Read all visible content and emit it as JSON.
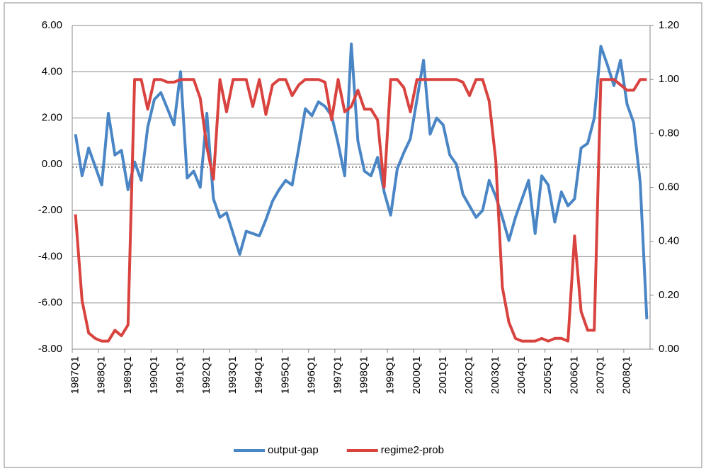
{
  "chart_data": {
    "type": "line",
    "categories": [
      "1987Q1",
      null,
      null,
      null,
      "1988Q1",
      null,
      null,
      null,
      "1989Q1",
      null,
      null,
      null,
      "1990Q1",
      null,
      null,
      null,
      "1991Q1",
      null,
      null,
      null,
      "1992Q1",
      null,
      null,
      null,
      "1993Q1",
      null,
      null,
      null,
      "1994Q1",
      null,
      null,
      null,
      "1995Q1",
      null,
      null,
      null,
      "1996Q1",
      null,
      null,
      null,
      "1997Q1",
      null,
      null,
      null,
      "1998Q1",
      null,
      null,
      null,
      "1999Q1",
      null,
      null,
      null,
      "2000Q1",
      null,
      null,
      null,
      "2001Q1",
      null,
      null,
      null,
      "2002Q1",
      null,
      null,
      null,
      "2003Q1",
      null,
      null,
      null,
      "2004Q1",
      null,
      null,
      null,
      "2005Q1",
      null,
      null,
      null,
      "2006Q1",
      null,
      null,
      null,
      "2007Q1",
      null,
      null,
      null,
      "2008Q1",
      null,
      null,
      null
    ],
    "series": [
      {
        "name": "output-gap",
        "color": "#4a86c5",
        "values": [
          1.3,
          -0.5,
          0.7,
          -0.1,
          -0.9,
          2.2,
          0.4,
          0.6,
          -1.1,
          0.1,
          -0.7,
          1.6,
          2.8,
          3.1,
          2.4,
          1.7,
          4.0,
          -0.6,
          -0.3,
          -1.0,
          2.2,
          -1.5,
          -2.3,
          -2.1,
          -3.0,
          -3.9,
          -2.9,
          -3.0,
          -3.1,
          -2.4,
          -1.6,
          -1.1,
          -0.7,
          -0.9,
          0.7,
          2.4,
          2.1,
          2.7,
          2.5,
          2.1,
          0.9,
          -0.5,
          5.2,
          1.0,
          -0.3,
          -0.5,
          0.3,
          -1.2,
          -2.2,
          -0.2,
          0.5,
          1.1,
          2.8,
          4.5,
          1.3,
          2.0,
          1.7,
          0.4,
          0.0,
          -1.3,
          -1.8,
          -2.3,
          -2.0,
          -0.7,
          -1.4,
          -2.3,
          -3.3,
          -2.3,
          -1.5,
          -0.7,
          -3.0,
          -0.5,
          -0.9,
          -2.5,
          -1.2,
          -1.8,
          -1.5,
          0.7,
          0.9,
          2.0,
          5.1,
          4.3,
          3.4,
          4.5,
          2.6,
          1.8,
          -0.8,
          -6.7
        ]
      },
      {
        "name": "regime2-prob",
        "color": "#d9433f",
        "axis": "y2",
        "values": [
          0.5,
          0.18,
          0.06,
          0.04,
          0.03,
          0.03,
          0.07,
          0.05,
          0.09,
          1.0,
          1.0,
          0.89,
          1.0,
          1.0,
          0.99,
          0.99,
          1.0,
          1.0,
          1.0,
          0.93,
          0.75,
          0.63,
          1.0,
          0.88,
          1.0,
          1.0,
          1.0,
          0.9,
          1.0,
          0.87,
          0.98,
          1.0,
          1.0,
          0.94,
          0.98,
          1.0,
          1.0,
          1.0,
          0.99,
          0.85,
          1.0,
          0.88,
          0.9,
          0.96,
          0.89,
          0.89,
          0.85,
          0.6,
          1.0,
          1.0,
          0.97,
          0.88,
          1.0,
          1.0,
          1.0,
          1.0,
          1.0,
          1.0,
          1.0,
          0.99,
          0.94,
          1.0,
          1.0,
          0.92,
          0.7,
          0.23,
          0.1,
          0.04,
          0.03,
          0.03,
          0.03,
          0.04,
          0.03,
          0.04,
          0.04,
          0.03,
          0.42,
          0.14,
          0.07,
          0.07,
          1.0,
          1.0,
          1.0,
          0.98,
          0.96,
          0.96,
          1.0,
          1.0
        ]
      }
    ],
    "ylim": [
      -8,
      6
    ],
    "yticks": [
      {
        "value": -8,
        "label": "-8.00"
      },
      {
        "value": -6,
        "label": "-6.00"
      },
      {
        "value": -4,
        "label": "-4.00"
      },
      {
        "value": -2,
        "label": "-2.00"
      },
      {
        "value": 0,
        "label": "0.00"
      },
      {
        "value": 2,
        "label": "2.00"
      },
      {
        "value": 4,
        "label": "4.00"
      },
      {
        "value": 6,
        "label": "6.00"
      }
    ],
    "y2lim": [
      0,
      1.2
    ],
    "y2ticks": [
      {
        "value": 0,
        "label": "0.00"
      },
      {
        "value": 0.2,
        "label": "0.20"
      },
      {
        "value": 0.4,
        "label": "0.40"
      },
      {
        "value": 0.6,
        "label": "0.60"
      },
      {
        "value": 0.8,
        "label": "0.80"
      },
      {
        "value": 1,
        "label": "1.00"
      },
      {
        "value": 1.2,
        "label": "1.20"
      }
    ],
    "grid": true,
    "legend": "bottom"
  }
}
